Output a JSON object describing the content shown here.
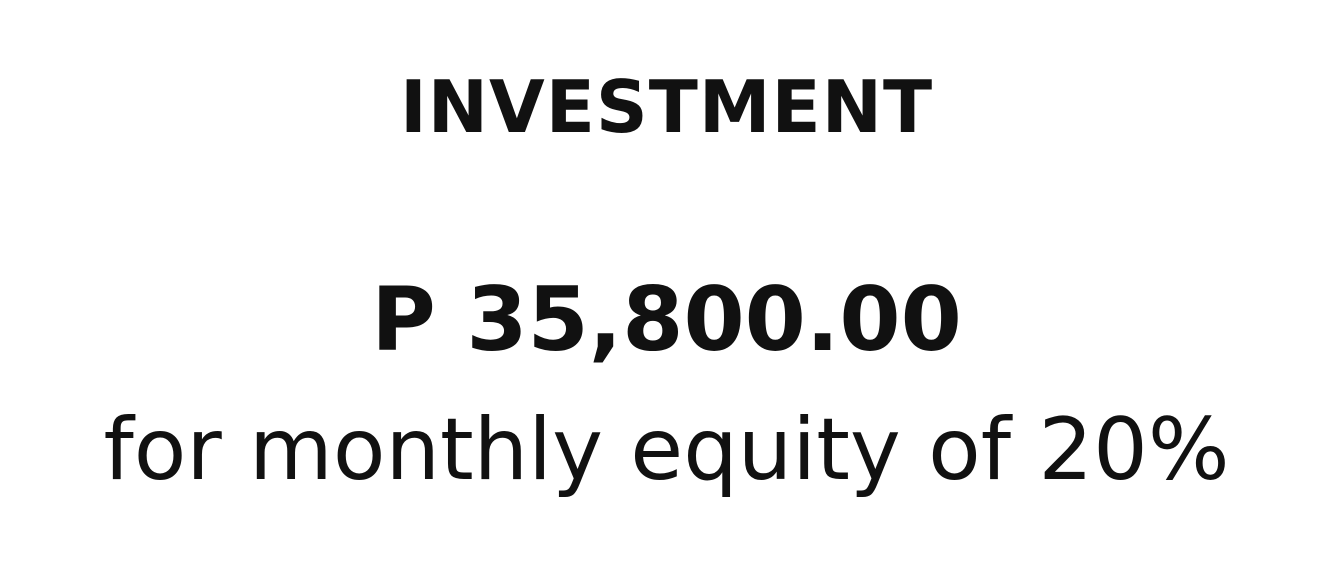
{
  "heading": "INVESTMENT",
  "amount": "P 35,800.00",
  "subtext": "for monthly equity of 20%",
  "colors": {
    "background": "#ffffff",
    "text": "#111111"
  }
}
